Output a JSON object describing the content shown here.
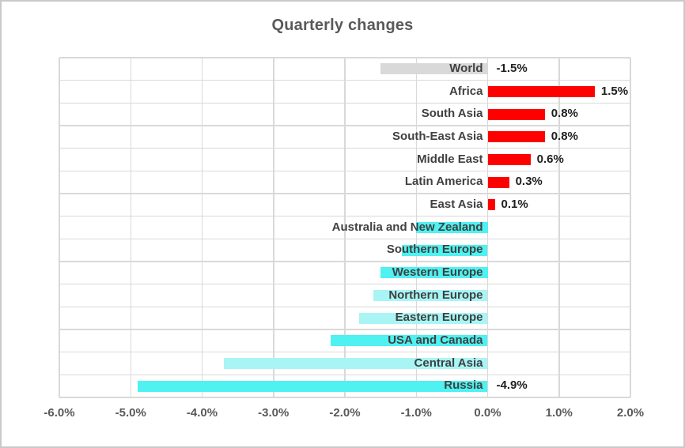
{
  "window": {
    "title": "Quarterly changes"
  },
  "colors": {
    "background": "#ffffff",
    "canvas_border": "#c9c9c9",
    "gridline": "#d9d9d9",
    "title_text": "#595959",
    "category_text": "#404040",
    "data_label_text": "#1f1f1f",
    "axis_tick_text": "#595959",
    "bar_world_gray": "#d9d9d9",
    "bar_positive_red": "#ff0000",
    "bar_negative_cyan": "#4ff1f1",
    "bar_negative_cyan_light": "#a9f5f5"
  },
  "chart_data": {
    "type": "bar",
    "orientation": "horizontal",
    "title": "Quarterly changes",
    "xlabel": "",
    "ylabel": "",
    "grid": true,
    "xlim": [
      -6,
      2
    ],
    "x_ticks": [
      -6,
      -5,
      -4,
      -3,
      -2,
      -1,
      0,
      1,
      2
    ],
    "x_tick_labels": [
      "-6.0%",
      "-5.0%",
      "-4.0%",
      "-3.0%",
      "-2.0%",
      "-1.0%",
      "0.0%",
      "1.0%",
      "2.0%"
    ],
    "categories": [
      "World",
      "Africa",
      "South Asia",
      "South-East Asia",
      "Middle East",
      "Latin America",
      "East Asia",
      "Australia and New Zealand",
      "Southern Europe",
      "Western Europe",
      "Northern Europe",
      "Eastern Europe",
      "USA and Canada",
      "Central Asia",
      "Russia"
    ],
    "values": [
      -1.5,
      1.5,
      0.8,
      0.8,
      0.6,
      0.3,
      0.1,
      -1.0,
      -1.2,
      -1.5,
      -1.6,
      -1.8,
      -2.2,
      -3.7,
      -4.9
    ],
    "data_labels": [
      "-1.5%",
      "1.5%",
      "0.8%",
      "0.8%",
      "0.6%",
      "0.3%",
      "0.1%",
      null,
      null,
      null,
      null,
      null,
      null,
      null,
      "-4.9%"
    ],
    "bar_colors": [
      "#d9d9d9",
      "#ff0000",
      "#ff0000",
      "#ff0000",
      "#ff0000",
      "#ff0000",
      "#ff0000",
      "#4ff1f1",
      "#4ff1f1",
      "#4ff1f1",
      "#a9f5f5",
      "#a9f5f5",
      "#4ff1f1",
      "#a9f5f5",
      "#4ff1f1"
    ]
  }
}
